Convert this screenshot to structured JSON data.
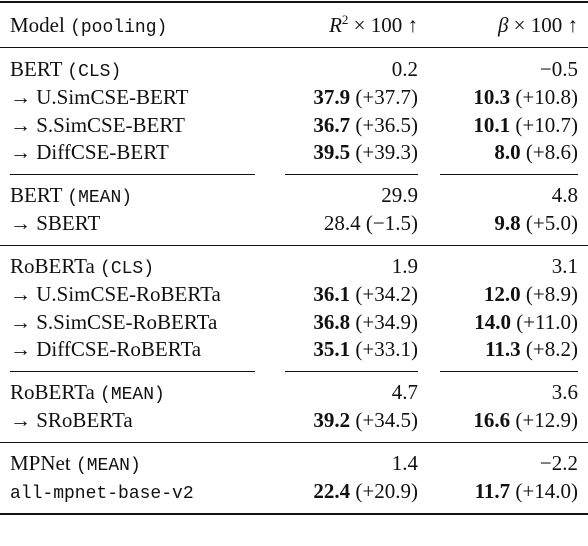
{
  "table": {
    "header": {
      "model": "Model",
      "pooling": "(pooling)",
      "r2": {
        "var": "R",
        "sup": "2",
        "rest": "× 100 ↑"
      },
      "beta": {
        "var": "β",
        "rest": "× 100 ↑"
      }
    },
    "groups": [
      {
        "rows": [
          {
            "model": {
              "text": "BERT",
              "pooling": "(CLS)"
            },
            "r2": {
              "value": "0.2"
            },
            "beta": {
              "value": "−0.5"
            }
          },
          {
            "model": {
              "text": "→ U.SimCSE-BERT"
            },
            "r2": {
              "value": "37.9",
              "delta": "(+37.7)",
              "bold": true
            },
            "beta": {
              "value": "10.3",
              "delta": "(+10.8)",
              "bold": true
            }
          },
          {
            "model": {
              "text": "→ S.SimCSE-BERT"
            },
            "r2": {
              "value": "36.7",
              "delta": "(+36.5)",
              "bold": true
            },
            "beta": {
              "value": "10.1",
              "delta": "(+10.7)",
              "bold": true
            }
          },
          {
            "model": {
              "text": "→ DiffCSE-BERT"
            },
            "r2": {
              "value": "39.5",
              "delta": "(+39.3)",
              "bold": true
            },
            "beta": {
              "value": "8.0",
              "delta": "(+8.6)",
              "bold": true
            }
          }
        ]
      },
      {
        "rows": [
          {
            "model": {
              "text": "BERT",
              "pooling": "(MEAN)"
            },
            "r2": {
              "value": "29.9"
            },
            "beta": {
              "value": "4.8"
            }
          },
          {
            "model": {
              "text": "→ SBERT"
            },
            "r2": {
              "value": "28.4",
              "delta": "(−1.5)",
              "bold": false
            },
            "beta": {
              "value": "9.8",
              "delta": "(+5.0)",
              "bold": true
            }
          }
        ]
      },
      {
        "rows": [
          {
            "model": {
              "text": "RoBERTa",
              "pooling": "(CLS)"
            },
            "r2": {
              "value": "1.9"
            },
            "beta": {
              "value": "3.1"
            }
          },
          {
            "model": {
              "text": "→ U.SimCSE-RoBERTa"
            },
            "r2": {
              "value": "36.1",
              "delta": "(+34.2)",
              "bold": true
            },
            "beta": {
              "value": "12.0",
              "delta": "(+8.9)",
              "bold": true
            }
          },
          {
            "model": {
              "text": "→ S.SimCSE-RoBERTa"
            },
            "r2": {
              "value": "36.8",
              "delta": "(+34.9)",
              "bold": true
            },
            "beta": {
              "value": "14.0",
              "delta": "(+11.0)",
              "bold": true
            }
          },
          {
            "model": {
              "text": "→ DiffCSE-RoBERTa"
            },
            "r2": {
              "value": "35.1",
              "delta": "(+33.1)",
              "bold": true
            },
            "beta": {
              "value": "11.3",
              "delta": "(+8.2)",
              "bold": true
            }
          }
        ]
      },
      {
        "rows": [
          {
            "model": {
              "text": "RoBERTa",
              "pooling": "(MEAN)"
            },
            "r2": {
              "value": "4.7"
            },
            "beta": {
              "value": "3.6"
            }
          },
          {
            "model": {
              "text": "→ SRoBERTa"
            },
            "r2": {
              "value": "39.2",
              "delta": "(+34.5)",
              "bold": true
            },
            "beta": {
              "value": "16.6",
              "delta": "(+12.9)",
              "bold": true
            }
          }
        ]
      },
      {
        "rows": [
          {
            "model": {
              "text": "MPNet",
              "pooling": "(MEAN)"
            },
            "r2": {
              "value": "1.4"
            },
            "beta": {
              "value": "−2.2"
            }
          },
          {
            "model": {
              "text": "all-mpnet-base-v2",
              "mono": true
            },
            "r2": {
              "value": "22.4",
              "delta": "(+20.9)",
              "bold": true
            },
            "beta": {
              "value": "11.7",
              "delta": "(+14.0)",
              "bold": true
            }
          }
        ]
      }
    ]
  }
}
